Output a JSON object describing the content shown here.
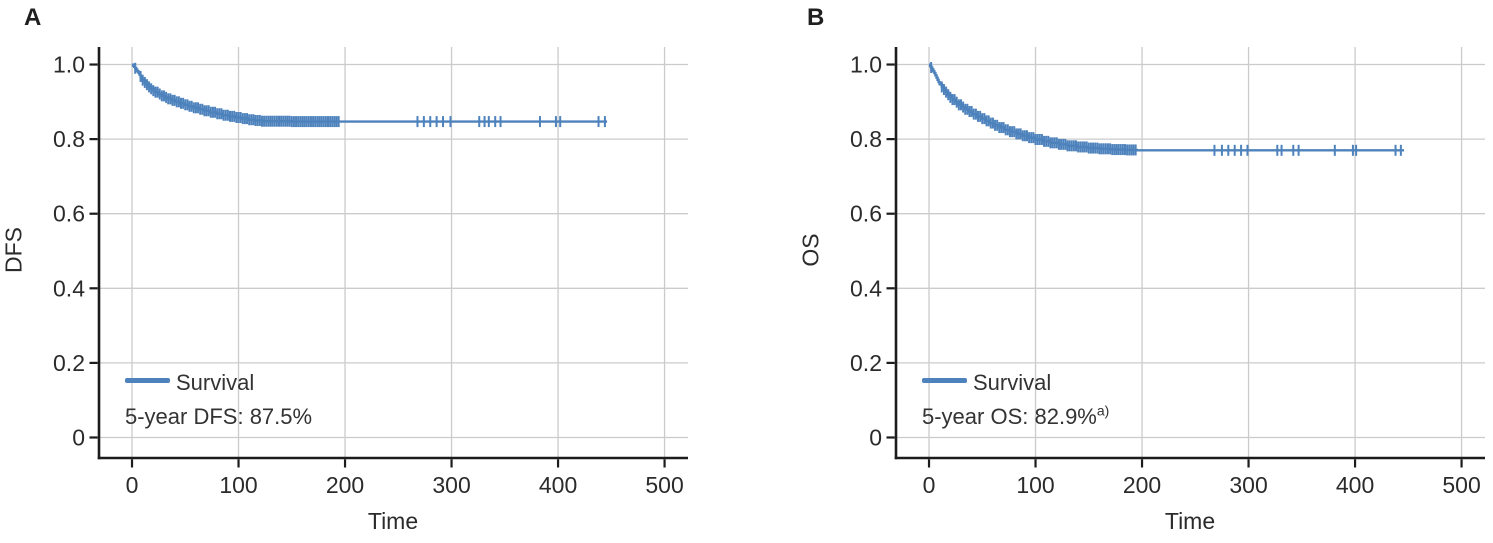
{
  "figure": {
    "background": "#ffffff"
  },
  "colors": {
    "curve": "#4d82bc",
    "grid": "#cbcbcb",
    "axis": "#1c1c1c",
    "tick_label": "#2b2b2b",
    "text": "#333333"
  },
  "panels": [
    {
      "panel_label": "A",
      "y_axis_label": "DFS",
      "x_axis_label": "Time",
      "legend": {
        "label": "Survival"
      },
      "annotation": {
        "text": "5-year DFS: 87.5%",
        "superscript": ""
      },
      "x_tick_labels": [
        "0",
        "100",
        "200",
        "300",
        "400",
        "500"
      ],
      "y_tick_labels": [
        "1.0",
        "0.8",
        "0.6",
        "0.4",
        "0.2",
        "0"
      ]
    },
    {
      "panel_label": "B",
      "y_axis_label": "OS",
      "x_axis_label": "Time",
      "legend": {
        "label": "Survival"
      },
      "annotation": {
        "text": "5-year OS: 82.9%",
        "superscript": "a)"
      },
      "x_tick_labels": [
        "0",
        "100",
        "200",
        "300",
        "400",
        "500"
      ],
      "y_tick_labels": [
        "1.0",
        "0.8",
        "0.6",
        "0.4",
        "0.2",
        "0"
      ]
    }
  ],
  "chart_data": [
    {
      "type": "line",
      "subtype": "kaplan-meier-step",
      "panel": "A",
      "title": "",
      "xlabel": "Time",
      "ylabel": "DFS",
      "xlim": [
        -31,
        522
      ],
      "ylim": [
        -0.055,
        1.047
      ],
      "xticks": [
        0,
        100,
        200,
        300,
        400,
        500
      ],
      "yticks": [
        1.0,
        0.8,
        0.6,
        0.4,
        0.2,
        0
      ],
      "grid": true,
      "legend_position": "lower left",
      "annotation": "5-year DFS: 87.5%",
      "series": [
        {
          "name": "Survival",
          "step_points": [
            [
              0,
              1.0
            ],
            [
              1,
              0.997
            ],
            [
              2,
              0.994
            ],
            [
              3,
              0.99
            ],
            [
              4,
              0.986
            ],
            [
              5,
              0.982
            ],
            [
              6,
              0.978
            ],
            [
              7,
              0.973
            ],
            [
              8,
              0.968
            ],
            [
              9,
              0.963
            ],
            [
              10,
              0.958
            ],
            [
              12,
              0.952
            ],
            [
              14,
              0.946
            ],
            [
              16,
              0.94
            ],
            [
              18,
              0.935
            ],
            [
              20,
              0.93
            ],
            [
              22,
              0.926
            ],
            [
              25,
              0.921
            ],
            [
              28,
              0.916
            ],
            [
              31,
              0.912
            ],
            [
              34,
              0.908
            ],
            [
              37,
              0.904
            ],
            [
              41,
              0.9
            ],
            [
              45,
              0.896
            ],
            [
              49,
              0.892
            ],
            [
              53,
              0.888
            ],
            [
              58,
              0.884
            ],
            [
              63,
              0.88
            ],
            [
              68,
              0.876
            ],
            [
              73,
              0.872
            ],
            [
              79,
              0.868
            ],
            [
              85,
              0.864
            ],
            [
              91,
              0.861
            ],
            [
              97,
              0.858
            ],
            [
              103,
              0.855
            ],
            [
              109,
              0.852
            ],
            [
              115,
              0.85
            ],
            [
              122,
              0.848
            ],
            [
              150,
              0.847
            ],
            [
              446,
              0.847
            ]
          ],
          "censor_times": [
            3,
            8,
            10,
            12,
            14,
            16,
            18,
            20,
            22,
            24,
            26,
            28,
            30,
            32,
            34,
            36,
            38,
            40,
            42,
            44,
            46,
            48,
            50,
            52,
            54,
            56,
            58,
            60,
            62,
            64,
            66,
            68,
            70,
            72,
            74,
            76,
            78,
            80,
            82,
            84,
            86,
            88,
            90,
            92,
            94,
            96,
            98,
            100,
            102,
            104,
            106,
            108,
            110,
            112,
            114,
            116,
            118,
            120,
            122,
            124,
            126,
            128,
            130,
            132,
            134,
            136,
            138,
            140,
            142,
            144,
            146,
            148,
            150,
            152,
            154,
            156,
            158,
            160,
            162,
            164,
            166,
            168,
            170,
            172,
            174,
            176,
            178,
            180,
            182,
            184,
            186,
            188,
            190,
            192,
            194,
            268,
            274,
            280,
            286,
            292,
            299,
            326,
            331,
            335,
            341,
            346,
            383,
            398,
            402,
            438,
            444
          ]
        }
      ]
    },
    {
      "type": "line",
      "subtype": "kaplan-meier-step",
      "panel": "B",
      "title": "",
      "xlabel": "Time",
      "ylabel": "OS",
      "xlim": [
        -31,
        522
      ],
      "ylim": [
        -0.055,
        1.047
      ],
      "xticks": [
        0,
        100,
        200,
        300,
        400,
        500
      ],
      "yticks": [
        1.0,
        0.8,
        0.6,
        0.4,
        0.2,
        0
      ],
      "grid": true,
      "legend_position": "lower left",
      "annotation": "5-year OS: 82.9%a)",
      "series": [
        {
          "name": "Survival",
          "step_points": [
            [
              0,
              1.0
            ],
            [
              1,
              0.996
            ],
            [
              2,
              0.992
            ],
            [
              3,
              0.987
            ],
            [
              4,
              0.982
            ],
            [
              5,
              0.977
            ],
            [
              6,
              0.971
            ],
            [
              7,
              0.965
            ],
            [
              8,
              0.959
            ],
            [
              9,
              0.953
            ],
            [
              10,
              0.947
            ],
            [
              12,
              0.94
            ],
            [
              14,
              0.933
            ],
            [
              16,
              0.926
            ],
            [
              18,
              0.919
            ],
            [
              20,
              0.912
            ],
            [
              22,
              0.906
            ],
            [
              25,
              0.899
            ],
            [
              28,
              0.892
            ],
            [
              31,
              0.886
            ],
            [
              34,
              0.88
            ],
            [
              37,
              0.874
            ],
            [
              41,
              0.867
            ],
            [
              45,
              0.861
            ],
            [
              49,
              0.855
            ],
            [
              53,
              0.849
            ],
            [
              57,
              0.843
            ],
            [
              61,
              0.837
            ],
            [
              66,
              0.831
            ],
            [
              71,
              0.825
            ],
            [
              76,
              0.82
            ],
            [
              82,
              0.814
            ],
            [
              88,
              0.809
            ],
            [
              94,
              0.804
            ],
            [
              100,
              0.799
            ],
            [
              107,
              0.794
            ],
            [
              114,
              0.79
            ],
            [
              122,
              0.786
            ],
            [
              130,
              0.782
            ],
            [
              139,
              0.779
            ],
            [
              149,
              0.776
            ],
            [
              160,
              0.774
            ],
            [
              172,
              0.772
            ],
            [
              185,
              0.771
            ],
            [
              195,
              0.77
            ],
            [
              446,
              0.77
            ]
          ],
          "censor_times": [
            2,
            12,
            14,
            16,
            18,
            20,
            22,
            24,
            26,
            28,
            30,
            32,
            34,
            36,
            38,
            40,
            42,
            44,
            46,
            48,
            50,
            52,
            54,
            56,
            58,
            60,
            62,
            64,
            66,
            68,
            70,
            72,
            74,
            76,
            78,
            80,
            82,
            84,
            86,
            88,
            90,
            92,
            94,
            96,
            98,
            100,
            102,
            104,
            106,
            108,
            110,
            112,
            114,
            116,
            118,
            120,
            122,
            124,
            126,
            128,
            130,
            132,
            134,
            136,
            138,
            140,
            142,
            144,
            146,
            148,
            150,
            152,
            154,
            156,
            158,
            160,
            162,
            164,
            166,
            168,
            170,
            172,
            174,
            176,
            178,
            180,
            182,
            184,
            186,
            188,
            190,
            192,
            194,
            268,
            275,
            281,
            287,
            293,
            299,
            327,
            331,
            342,
            347,
            381,
            398,
            401,
            438,
            443
          ]
        }
      ]
    }
  ]
}
